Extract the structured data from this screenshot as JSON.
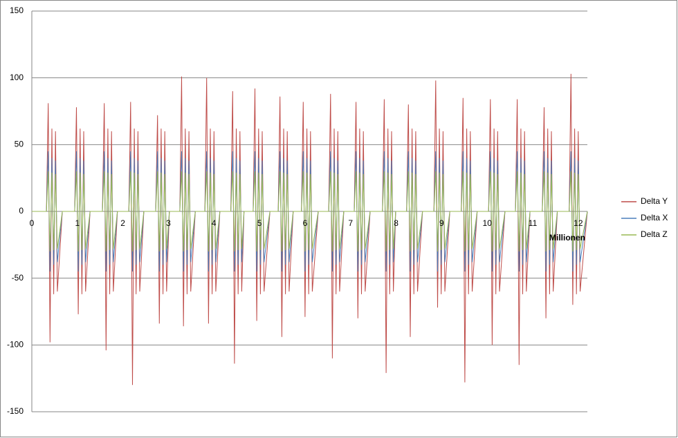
{
  "chart_data": {
    "type": "line",
    "x": [
      0,
      0.32,
      0.36,
      0.4,
      0.44,
      0.48,
      0.52,
      0.56,
      0.67,
      0.94,
      0.98,
      1.02,
      1.06,
      1.1,
      1.14,
      1.18,
      1.28,
      1.55,
      1.59,
      1.63,
      1.67,
      1.71,
      1.75,
      1.79,
      1.88,
      2.13,
      2.17,
      2.21,
      2.25,
      2.29,
      2.33,
      2.37,
      2.46,
      2.72,
      2.76,
      2.8,
      2.84,
      2.88,
      2.92,
      2.96,
      3.02,
      3.25,
      3.29,
      3.33,
      3.37,
      3.41,
      3.45,
      3.49,
      3.59,
      3.8,
      3.84,
      3.88,
      3.92,
      3.96,
      4.0,
      4.04,
      4.13,
      4.37,
      4.41,
      4.45,
      4.49,
      4.53,
      4.57,
      4.61,
      4.66,
      4.86,
      4.9,
      4.94,
      4.98,
      5.02,
      5.06,
      5.1,
      5.23,
      5.41,
      5.45,
      5.49,
      5.53,
      5.57,
      5.61,
      5.65,
      5.74,
      5.92,
      5.96,
      6.0,
      6.04,
      6.08,
      6.12,
      6.16,
      6.29,
      6.52,
      6.56,
      6.6,
      6.64,
      6.68,
      6.72,
      6.76,
      6.85,
      7.08,
      7.12,
      7.16,
      7.2,
      7.24,
      7.28,
      7.32,
      7.43,
      7.7,
      7.74,
      7.78,
      7.82,
      7.86,
      7.9,
      7.94,
      7.99,
      8.23,
      8.27,
      8.31,
      8.35,
      8.39,
      8.43,
      8.47,
      8.58,
      8.83,
      8.87,
      8.91,
      8.95,
      8.99,
      9.03,
      9.07,
      9.18,
      9.43,
      9.47,
      9.51,
      9.55,
      9.59,
      9.63,
      9.67,
      9.78,
      10.03,
      10.07,
      10.11,
      10.15,
      10.19,
      10.23,
      10.27,
      10.39,
      10.62,
      10.66,
      10.7,
      10.74,
      10.78,
      10.82,
      10.86,
      10.94,
      11.21,
      11.25,
      11.29,
      11.33,
      11.37,
      11.41,
      11.45,
      11.54,
      11.8,
      11.84,
      11.88,
      11.92,
      11.96,
      12.0,
      12.04,
      12.2
    ],
    "series": [
      {
        "name": "Delta Y",
        "color": "#be4b48",
        "values": [
          0,
          0,
          81,
          -98,
          62,
          -62,
          60,
          -60,
          0,
          0,
          78,
          -77,
          62,
          -62,
          60,
          -60,
          0,
          0,
          81,
          -104,
          62,
          -62,
          60,
          -60,
          0,
          0,
          82,
          -130,
          62,
          -62,
          60,
          -60,
          0,
          0,
          72,
          -84,
          62,
          -62,
          60,
          -60,
          0,
          0,
          101,
          -86,
          62,
          -62,
          60,
          -60,
          0,
          0,
          100,
          -84,
          62,
          -62,
          60,
          -60,
          0,
          0,
          90,
          -114,
          62,
          -62,
          60,
          -60,
          0,
          0,
          92,
          -82,
          62,
          -62,
          60,
          -60,
          0,
          0,
          86,
          -94,
          62,
          -62,
          60,
          -60,
          0,
          0,
          82,
          -79,
          62,
          -62,
          60,
          -60,
          0,
          0,
          88,
          -110,
          62,
          -62,
          60,
          -60,
          0,
          0,
          82,
          -80,
          62,
          -62,
          60,
          -60,
          0,
          0,
          84,
          -121,
          62,
          -62,
          60,
          -60,
          0,
          0,
          80,
          -94,
          62,
          -62,
          60,
          -60,
          0,
          0,
          98,
          -72,
          62,
          -62,
          60,
          -60,
          0,
          0,
          85,
          -128,
          62,
          -62,
          60,
          -60,
          0,
          0,
          84,
          -100,
          62,
          -62,
          60,
          -60,
          0,
          0,
          84,
          -115,
          62,
          -62,
          60,
          -60,
          0,
          0,
          78,
          -80,
          62,
          -62,
          60,
          -60,
          0,
          0,
          103,
          -70,
          62,
          -62,
          60,
          -60,
          0
        ]
      },
      {
        "name": "Delta X",
        "color": "#4a7ebb",
        "values": [
          0,
          0,
          45,
          -45,
          40,
          -40,
          38,
          -38,
          0,
          0,
          45,
          -45,
          40,
          -40,
          38,
          -38,
          0,
          0,
          45,
          -45,
          40,
          -40,
          38,
          -38,
          0,
          0,
          45,
          -45,
          40,
          -40,
          38,
          -38,
          0,
          0,
          45,
          -45,
          40,
          -40,
          38,
          -38,
          0,
          0,
          45,
          -45,
          40,
          -40,
          38,
          -38,
          0,
          0,
          45,
          -45,
          40,
          -40,
          38,
          -38,
          0,
          0,
          45,
          -45,
          40,
          -40,
          38,
          -38,
          0,
          0,
          45,
          -45,
          40,
          -40,
          38,
          -38,
          0,
          0,
          45,
          -45,
          40,
          -40,
          38,
          -38,
          0,
          0,
          45,
          -45,
          40,
          -40,
          38,
          -38,
          0,
          0,
          45,
          -45,
          40,
          -40,
          38,
          -38,
          0,
          0,
          45,
          -45,
          40,
          -40,
          38,
          -38,
          0,
          0,
          45,
          -45,
          40,
          -40,
          38,
          -38,
          0,
          0,
          45,
          -45,
          40,
          -40,
          38,
          -38,
          0,
          0,
          45,
          -45,
          40,
          -40,
          38,
          -38,
          0,
          0,
          45,
          -45,
          40,
          -40,
          38,
          -38,
          0,
          0,
          45,
          -45,
          40,
          -40,
          38,
          -38,
          0,
          0,
          45,
          -45,
          40,
          -40,
          38,
          -38,
          0,
          0,
          45,
          -45,
          40,
          -40,
          38,
          -38,
          0,
          0,
          45,
          -45,
          40,
          -40,
          38,
          -38,
          0
        ]
      },
      {
        "name": "Delta Z",
        "color": "#98b954",
        "values": [
          0,
          0,
          30,
          -30,
          29,
          -29,
          28,
          -28,
          0,
          0,
          30,
          -30,
          29,
          -29,
          28,
          -28,
          0,
          0,
          30,
          -30,
          29,
          -29,
          28,
          -28,
          0,
          0,
          30,
          -30,
          29,
          -29,
          28,
          -28,
          0,
          0,
          30,
          -30,
          29,
          -29,
          28,
          -28,
          0,
          0,
          30,
          -30,
          29,
          -29,
          28,
          -28,
          0,
          0,
          30,
          -30,
          29,
          -29,
          28,
          -28,
          0,
          0,
          30,
          -30,
          29,
          -29,
          28,
          -28,
          0,
          0,
          30,
          -30,
          29,
          -29,
          28,
          -28,
          0,
          0,
          30,
          -30,
          29,
          -29,
          28,
          -28,
          0,
          0,
          30,
          -30,
          29,
          -29,
          28,
          -28,
          0,
          0,
          30,
          -30,
          29,
          -29,
          28,
          -28,
          0,
          0,
          30,
          -30,
          29,
          -29,
          28,
          -28,
          0,
          0,
          30,
          -30,
          29,
          -29,
          28,
          -28,
          0,
          0,
          30,
          -30,
          29,
          -29,
          28,
          -28,
          0,
          0,
          30,
          -30,
          29,
          -29,
          28,
          -28,
          0,
          0,
          30,
          -30,
          29,
          -29,
          28,
          -28,
          0,
          0,
          30,
          -30,
          29,
          -29,
          28,
          -28,
          0,
          0,
          30,
          -30,
          29,
          -29,
          28,
          -28,
          0,
          0,
          30,
          -30,
          29,
          -29,
          28,
          -28,
          0,
          0,
          30,
          -30,
          29,
          -29,
          28,
          -28,
          0
        ]
      }
    ],
    "x_unit_label": "Millionen",
    "xlim": [
      0,
      12.2
    ],
    "xticks": [
      0,
      1,
      2,
      3,
      4,
      5,
      6,
      7,
      8,
      9,
      10,
      11,
      12
    ],
    "ylim": [
      -150,
      150
    ],
    "yticks": [
      -150,
      -100,
      -50,
      0,
      50,
      100,
      150
    ],
    "grid": true,
    "legend": "right"
  }
}
